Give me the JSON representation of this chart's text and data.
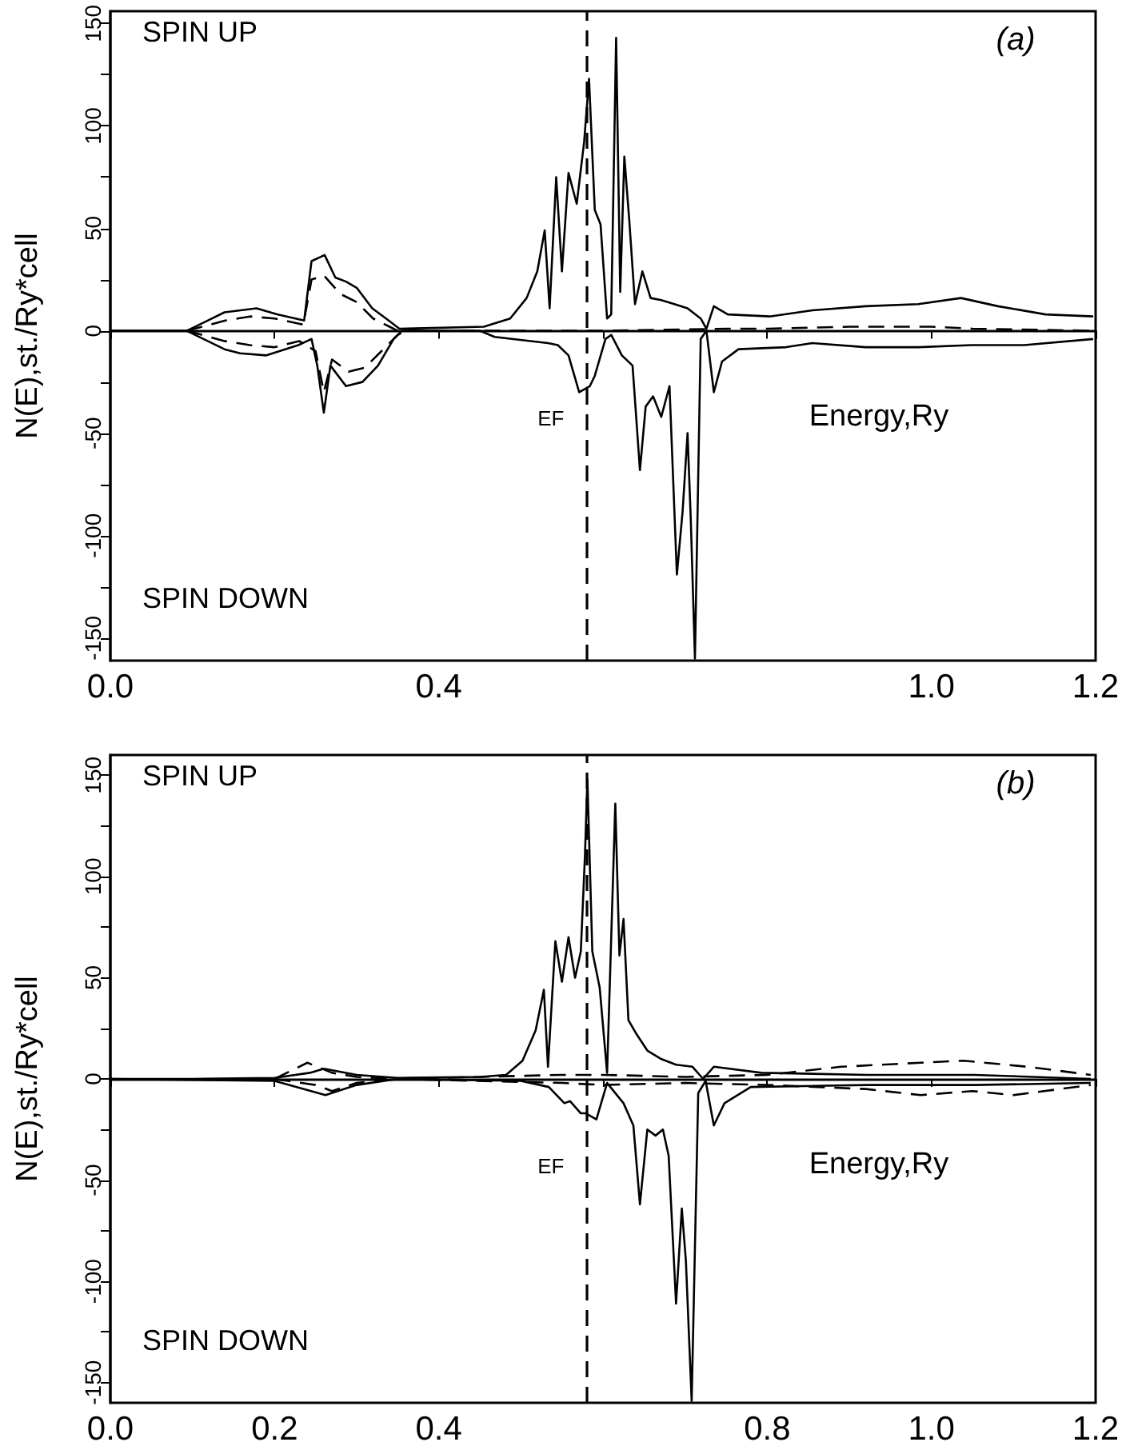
{
  "chart_data": [
    {
      "type": "line",
      "xlabel": "Energy,Ry",
      "ylabel": "N(E),st./Ry*cell",
      "annotations": [
        "SPIN UP",
        "SPIN DOWN",
        "(a)"
      ],
      "marker": "none",
      "xlim": [
        0,
        1.2
      ],
      "ylim": [
        -161,
        156
      ],
      "xticks": [
        {
          "value": 0,
          "label": "0.0"
        },
        {
          "value": 0.2,
          "label": null
        },
        0.4,
        {
          "value": 0.6,
          "label": null
        },
        {
          "value": 0.8,
          "label": null
        },
        {
          "value": 1.0,
          "label": "1.0"
        },
        1.2
      ],
      "yticks": [
        -150,
        {
          "value": -125,
          "label": null
        },
        -100,
        {
          "value": -75,
          "label": null
        },
        -50,
        {
          "value": -25,
          "label": null
        },
        0,
        {
          "value": 25,
          "label": null
        },
        50,
        {
          "value": 75,
          "label": null
        },
        100,
        {
          "value": 125,
          "label": null
        },
        150
      ],
      "ref_lines": [
        {
          "axis": "x",
          "value": 0.58,
          "label": "EF",
          "line_style": "dashed",
          "color": "#000000"
        }
      ],
      "series": [
        {
          "color": "#000000",
          "line_style": "solid",
          "x": [
            0,
            0.093,
            0.139,
            0.178,
            0.203,
            0.236,
            0.245,
            0.261,
            0.274,
            0.287,
            0.3,
            0.319,
            0.339,
            0.352,
            0.455,
            0.487,
            0.507,
            0.52,
            0.529,
            0.535,
            0.543,
            0.55,
            0.558,
            0.568,
            0.577,
            0.583,
            0.59,
            0.597,
            0.605,
            0.61,
            0.616,
            0.621,
            0.626,
            0.632,
            0.639,
            0.648,
            0.658,
            0.671,
            0.687,
            0.703,
            0.719,
            0.726,
            0.735,
            0.752,
            0.803,
            0.855,
            0.92,
            0.984,
            1.036,
            1.081,
            1.139,
            1.197
          ],
          "values": [
            0,
            0,
            9,
            11,
            8,
            5,
            34,
            37,
            26,
            24,
            21,
            11,
            5,
            1,
            2,
            6,
            16,
            29,
            49,
            11,
            75,
            29,
            77,
            62,
            92,
            123,
            59,
            52,
            6,
            8,
            143,
            19,
            85,
            54,
            13,
            29,
            16,
            15,
            13,
            11,
            6,
            1,
            12,
            8,
            7,
            10,
            12,
            13,
            16,
            12,
            8,
            7
          ]
        },
        {
          "color": "#000000",
          "line_style": "dashed",
          "x": [
            0.093,
            0.14,
            0.17,
            0.2,
            0.235,
            0.245,
            0.26,
            0.28,
            0.3,
            0.32,
            0.34,
            0.35,
            0.6,
            0.75,
            0.8,
            0.9,
            1.0,
            1.05,
            1.2
          ],
          "values": [
            0,
            5,
            7,
            6,
            3,
            25,
            27,
            18,
            14,
            6,
            2,
            0,
            0,
            1,
            1,
            2,
            2,
            1,
            0
          ]
        },
        {
          "color": "#000000",
          "line_style": "solid",
          "x": [
            0,
            0.093,
            0.139,
            0.158,
            0.19,
            0.229,
            0.245,
            0.252,
            0.26,
            0.268,
            0.287,
            0.307,
            0.326,
            0.345,
            0.355,
            0.45,
            0.468,
            0.533,
            0.545,
            0.558,
            0.571,
            0.584,
            0.59,
            0.603,
            0.61,
            0.623,
            0.636,
            0.645,
            0.652,
            0.661,
            0.671,
            0.681,
            0.69,
            0.697,
            0.703,
            0.707,
            0.712,
            0.719,
            0.726,
            0.735,
            0.745,
            0.765,
            0.823,
            0.855,
            0.92,
            0.984,
            1.049,
            1.113,
            1.197
          ],
          "values": [
            0,
            0,
            -9,
            -11,
            -12,
            -7,
            -4,
            -17,
            -40,
            -17,
            -27,
            -25,
            -17,
            -4,
            0,
            0,
            -3,
            -6,
            -7,
            -12,
            -30,
            -27,
            -22,
            -4,
            -2,
            -12,
            -17,
            -68,
            -37,
            -32,
            -42,
            -27,
            -119,
            -88,
            -50,
            -93,
            -160,
            -4,
            0,
            -30,
            -15,
            -9,
            -8,
            -6,
            -8,
            -8,
            -7,
            -7,
            -4
          ]
        },
        {
          "color": "#000000",
          "line_style": "dashed",
          "x": [
            0.093,
            0.139,
            0.17,
            0.2,
            0.23,
            0.25,
            0.26,
            0.27,
            0.29,
            0.31,
            0.33,
            0.35,
            0.36
          ],
          "values": [
            0,
            -5,
            -7,
            -8,
            -5,
            -10,
            -30,
            -14,
            -20,
            -18,
            -10,
            -2,
            0
          ]
        }
      ]
    },
    {
      "type": "line",
      "xlabel": "Energy,Ry",
      "ylabel": "N(E),st./Ry*cell",
      "annotations": [
        "SPIN UP",
        "SPIN DOWN",
        "(b)"
      ],
      "marker": "none",
      "xlim": [
        0,
        1.2
      ],
      "ylim": [
        -160,
        160
      ],
      "xticks": [
        {
          "value": 0,
          "label": "0.0"
        },
        0.2,
        0.4,
        {
          "value": 0.6,
          "label": null
        },
        0.8,
        {
          "value": 1.0,
          "label": "1.0"
        },
        1.2
      ],
      "yticks": [
        -150,
        {
          "value": -125,
          "label": null
        },
        -100,
        {
          "value": -75,
          "label": null
        },
        -50,
        {
          "value": -25,
          "label": null
        },
        0,
        {
          "value": 25,
          "label": null
        },
        50,
        {
          "value": 75,
          "label": null
        },
        100,
        {
          "value": 125,
          "label": null
        },
        150
      ],
      "ref_lines": [
        {
          "axis": "x",
          "value": 0.58,
          "label": "EF",
          "line_style": "dashed",
          "color": "#000000"
        }
      ],
      "series": [
        {
          "color": "#000000",
          "line_style": "solid",
          "x": [
            0,
            0.1,
            0.2,
            0.243,
            0.26,
            0.3,
            0.35,
            0.45,
            0.482,
            0.502,
            0.518,
            0.528,
            0.533,
            0.542,
            0.55,
            0.558,
            0.566,
            0.573,
            0.578,
            0.581,
            0.587,
            0.596,
            0.605,
            0.615,
            0.62,
            0.625,
            0.631,
            0.641,
            0.654,
            0.67,
            0.689,
            0.709,
            0.722,
            0.735,
            0.793,
            0.922,
            1.052,
            1.194
          ],
          "values": [
            0,
            0,
            0.5,
            3,
            5,
            2,
            0.5,
            1,
            2,
            9,
            24,
            44,
            6,
            68,
            48,
            70,
            50,
            63,
            110,
            148,
            63,
            45,
            3,
            136,
            61,
            79,
            29,
            22,
            14,
            10,
            7,
            6,
            0,
            6,
            3,
            2,
            2,
            0
          ]
        },
        {
          "color": "#000000",
          "line_style": "dashed",
          "x": [
            0.2,
            0.24,
            0.27,
            0.3,
            0.35,
            0.55,
            0.6,
            0.7,
            0.8,
            0.89,
            0.987,
            1.039,
            1.117,
            1.194
          ],
          "values": [
            0,
            8,
            3,
            1,
            0,
            2,
            2,
            1,
            2,
            6,
            8,
            9,
            6,
            2
          ]
        },
        {
          "color": "#000000",
          "line_style": "solid",
          "x": [
            0,
            0.2,
            0.262,
            0.3,
            0.35,
            0.5,
            0.534,
            0.553,
            0.56,
            0.573,
            0.579,
            0.592,
            0.605,
            0.625,
            0.637,
            0.645,
            0.654,
            0.664,
            0.673,
            0.68,
            0.689,
            0.696,
            0.701,
            0.708,
            0.716,
            0.725,
            0.735,
            0.748,
            0.78,
            0.922,
            1.052,
            1.194
          ],
          "values": [
            0,
            -1,
            -8,
            -3,
            0,
            -1,
            -4,
            -12,
            -11,
            -17,
            -17,
            -20,
            -2,
            -12,
            -23,
            -62,
            -25,
            -28,
            -25,
            -38,
            -111,
            -64,
            -90,
            -159,
            -7,
            -1,
            -23,
            -12,
            -4,
            -3,
            -3,
            -2
          ]
        },
        {
          "color": "#000000",
          "line_style": "dashed",
          "x": [
            0.2,
            0.25,
            0.27,
            0.3,
            0.35,
            0.55,
            0.6,
            0.7,
            0.8,
            0.92,
            0.987,
            1.05,
            1.1,
            1.194
          ],
          "values": [
            0,
            -3,
            -6,
            -2,
            0,
            -2,
            -3,
            -2,
            -3,
            -5,
            -8,
            -6,
            -8,
            -3
          ]
        }
      ]
    }
  ]
}
